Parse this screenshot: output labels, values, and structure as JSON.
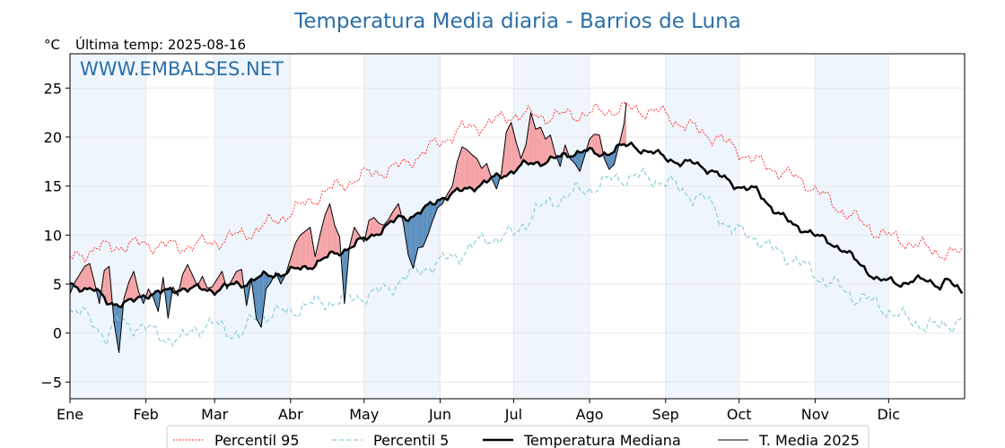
{
  "chart_data": {
    "type": "line",
    "title": "Temperatura Media diaria - Barrios de Luna",
    "unit_label": "°C",
    "subtitle": "Última temp: 2025-08-16",
    "watermark": "WWW.EMBALSES.NET",
    "ylim": [
      -6.7,
      28.5
    ],
    "yticks": [
      25,
      20,
      15,
      10,
      5,
      0,
      -5
    ],
    "ytick_labels": [
      "25",
      "20",
      "15",
      "10",
      "5",
      "0",
      "−5"
    ],
    "xlim": [
      0,
      365
    ],
    "months": [
      {
        "label": "Ene",
        "start": 0,
        "end": 31,
        "shaded": true
      },
      {
        "label": "Feb",
        "start": 31,
        "end": 59,
        "shaded": false
      },
      {
        "label": "Mar",
        "start": 59,
        "end": 90,
        "shaded": true
      },
      {
        "label": "Abr",
        "start": 90,
        "end": 120,
        "shaded": false
      },
      {
        "label": "May",
        "start": 120,
        "end": 151,
        "shaded": true
      },
      {
        "label": "Jun",
        "start": 151,
        "end": 181,
        "shaded": false
      },
      {
        "label": "Jul",
        "start": 181,
        "end": 212,
        "shaded": true
      },
      {
        "label": "Ago",
        "start": 212,
        "end": 243,
        "shaded": false
      },
      {
        "label": "Sep",
        "start": 243,
        "end": 273,
        "shaded": true
      },
      {
        "label": "Oct",
        "start": 273,
        "end": 304,
        "shaded": false
      },
      {
        "label": "Nov",
        "start": 304,
        "end": 334,
        "shaded": true
      },
      {
        "label": "Dic",
        "start": 334,
        "end": 365,
        "shaded": false
      }
    ],
    "colors": {
      "p95": "#ff2020",
      "p5": "#8ecbdd",
      "median": "#000000",
      "current": "#000000",
      "above_fill": "#f4a3a6",
      "below_fill": "#5b8fbd",
      "extreme_fill": "#e8484e",
      "month_shade": "#eef5fc"
    },
    "series": [
      {
        "name": "Percentil 95",
        "x": [
          0,
          10,
          20,
          31,
          45,
          59,
          75,
          90,
          105,
          120,
          135,
          151,
          160,
          170,
          181,
          195,
          212,
          225,
          240,
          250,
          265,
          280,
          300,
          315,
          330,
          345,
          358,
          364
        ],
        "values": [
          7.5,
          8.6,
          8.9,
          9.1,
          8.8,
          9.3,
          10.4,
          12.3,
          14.5,
          16.1,
          17.0,
          19.5,
          20.8,
          21.3,
          22.3,
          22.1,
          22.4,
          22.9,
          22.6,
          21.3,
          19.8,
          17.5,
          15.4,
          12.5,
          10.2,
          9.0,
          8.0,
          8.2
        ]
      },
      {
        "name": "Percentil 5",
        "x": [
          0,
          5,
          10,
          15,
          20,
          25,
          31,
          40,
          45,
          50,
          59,
          65,
          70,
          75,
          80,
          90,
          95,
          100,
          105,
          110,
          120,
          125,
          130,
          135,
          140,
          145,
          151,
          160,
          165,
          170,
          181,
          190,
          200,
          210,
          215,
          220,
          230,
          243,
          250,
          260,
          265,
          270,
          280,
          285,
          295,
          300,
          305,
          315,
          320,
          325,
          335,
          340,
          345,
          350,
          355,
          358,
          364
        ],
        "values": [
          2.5,
          1.9,
          1.0,
          -0.5,
          1.3,
          0.8,
          0.4,
          -0.5,
          -1.0,
          0.5,
          0.8,
          0.3,
          -0.3,
          1.5,
          1.8,
          2.2,
          2.7,
          3.0,
          3.2,
          3.3,
          3.8,
          4.1,
          4.5,
          5.5,
          6.0,
          6.8,
          7.2,
          8.2,
          9.0,
          9.6,
          10.0,
          12.5,
          13.8,
          14.6,
          15.0,
          15.6,
          16.0,
          15.5,
          14.5,
          13.5,
          12.0,
          10.5,
          9.8,
          8.7,
          7.6,
          6.7,
          5.8,
          4.5,
          3.7,
          3.4,
          2.2,
          1.5,
          1.1,
          0.8,
          0.5,
          0.9,
          1.5
        ]
      },
      {
        "name": "Temperatura Mediana",
        "x": [
          0,
          5,
          10,
          15,
          20,
          25,
          31,
          40,
          45,
          50,
          59,
          65,
          70,
          75,
          80,
          90,
          95,
          100,
          105,
          110,
          120,
          130,
          135,
          140,
          145,
          151,
          160,
          165,
          170,
          175,
          181,
          185,
          190,
          195,
          200,
          205,
          210,
          215,
          220,
          225,
          230,
          235,
          240,
          243,
          250,
          255,
          260,
          265,
          270,
          273,
          280,
          285,
          290,
          295,
          300,
          305,
          310,
          315,
          320,
          325,
          330,
          335,
          340,
          345,
          350,
          355,
          358,
          364
        ],
        "values": [
          4.8,
          4.7,
          4.4,
          3.2,
          3.0,
          3.1,
          4.0,
          4.2,
          4.6,
          4.5,
          4.4,
          4.8,
          5.0,
          5.5,
          5.8,
          6.3,
          6.6,
          7.1,
          7.7,
          8.3,
          9.5,
          11.0,
          11.8,
          12.0,
          12.6,
          13.8,
          14.5,
          15.0,
          15.4,
          16.0,
          16.6,
          17.1,
          17.4,
          17.6,
          17.9,
          18.4,
          18.6,
          18.2,
          18.5,
          19.0,
          19.2,
          18.5,
          18.2,
          18.0,
          17.2,
          17.4,
          16.8,
          16.0,
          15.3,
          15.0,
          14.5,
          13.2,
          12.0,
          11.0,
          10.6,
          9.8,
          9.3,
          8.6,
          7.5,
          6.5,
          5.3,
          5.3,
          5.1,
          5.3,
          5.5,
          4.8,
          5.3,
          4.2
        ]
      },
      {
        "name": "T. Media 2025",
        "x": [
          0,
          2,
          4,
          6,
          8,
          10,
          12,
          14,
          16,
          18,
          20,
          22,
          24,
          26,
          28,
          30,
          32,
          34,
          36,
          38,
          40,
          42,
          44,
          46,
          48,
          50,
          52,
          54,
          56,
          58,
          60,
          62,
          64,
          66,
          68,
          70,
          72,
          74,
          76,
          78,
          80,
          82,
          84,
          86,
          88,
          90,
          92,
          94,
          96,
          98,
          100,
          102,
          104,
          106,
          108,
          110,
          112,
          114,
          116,
          118,
          120,
          122,
          124,
          126,
          128,
          130,
          132,
          134,
          136,
          138,
          140,
          142,
          144,
          146,
          148,
          150,
          152,
          154,
          156,
          158,
          160,
          162,
          164,
          166,
          168,
          170,
          172,
          174,
          176,
          178,
          180,
          182,
          184,
          186,
          188,
          190,
          192,
          194,
          196,
          198,
          200,
          202,
          204,
          206,
          208,
          210,
          212,
          214,
          216,
          218,
          220,
          222,
          224,
          226,
          227
        ],
        "values": [
          4.0,
          5.2,
          6.0,
          6.8,
          7.1,
          5.2,
          3.0,
          6.4,
          6.8,
          1.0,
          -2.0,
          3.5,
          5.2,
          6.3,
          4.2,
          3.0,
          4.5,
          3.6,
          2.2,
          5.7,
          1.5,
          4.7,
          3.8,
          6.0,
          7.0,
          5.9,
          4.8,
          5.8,
          4.6,
          4.7,
          5.5,
          6.3,
          4.5,
          5.4,
          6.3,
          6.5,
          2.8,
          5.5,
          1.5,
          0.6,
          4.5,
          5.2,
          6.2,
          5.0,
          6.0,
          7.6,
          9.2,
          10.0,
          10.4,
          10.8,
          7.8,
          10.0,
          12.0,
          13.2,
          11.0,
          9.8,
          3.0,
          8.8,
          10.8,
          10.0,
          9.3,
          11.5,
          11.8,
          11.2,
          11.0,
          11.6,
          12.5,
          13.2,
          11.2,
          8.0,
          6.6,
          8.7,
          8.8,
          10.0,
          11.5,
          12.8,
          13.2,
          14.2,
          15.0,
          17.5,
          19.0,
          18.7,
          18.2,
          17.8,
          16.8,
          17.3,
          15.8,
          14.7,
          16.3,
          20.5,
          21.5,
          19.5,
          17.8,
          19.2,
          22.5,
          20.8,
          21.0,
          19.8,
          20.2,
          18.3,
          17.0,
          19.2,
          17.8,
          17.3,
          16.5,
          18.1,
          19.8,
          20.3,
          20.2,
          17.8,
          16.7,
          17.2,
          19.2,
          21.3,
          23.5
        ]
      }
    ],
    "legend": {
      "placement": "bottom-center",
      "entries": [
        {
          "label": "Percentil 95",
          "style": "p95"
        },
        {
          "label": "Percentil 5",
          "style": "p5"
        },
        {
          "label": "Temperatura Mediana",
          "style": "median"
        },
        {
          "label": "T. Media 2025",
          "style": "current"
        }
      ]
    },
    "grid": true
  }
}
